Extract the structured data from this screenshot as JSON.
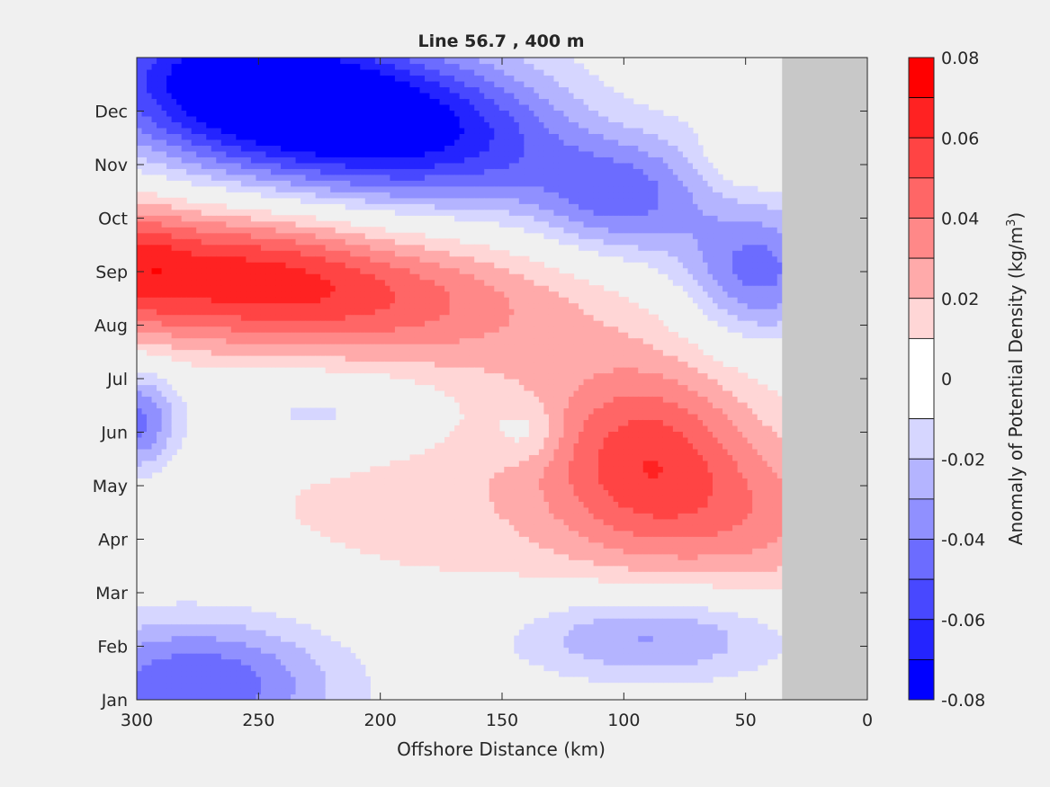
{
  "chart_data": {
    "type": "heatmap",
    "subtype": "filled-contour",
    "title": "Line 56.7 , 400 m",
    "xlabel": "Offshore Distance (km)",
    "ylabel": "",
    "xlim": [
      300,
      0
    ],
    "x_ticks": [
      300,
      250,
      200,
      150,
      100,
      50,
      0
    ],
    "y_ticks": [
      {
        "value": 0,
        "label": "Jan"
      },
      {
        "value": 1,
        "label": "Feb"
      },
      {
        "value": 2,
        "label": "Mar"
      },
      {
        "value": 3,
        "label": "Apr"
      },
      {
        "value": 4,
        "label": "May"
      },
      {
        "value": 5,
        "label": "Jun"
      },
      {
        "value": 6,
        "label": "Jul"
      },
      {
        "value": 7,
        "label": "Aug"
      },
      {
        "value": 8,
        "label": "Sep"
      },
      {
        "value": 9,
        "label": "Oct"
      },
      {
        "value": 10,
        "label": "Nov"
      },
      {
        "value": 11,
        "label": "Dec"
      }
    ],
    "ylim": [
      0,
      12
    ],
    "no_data_region": {
      "x_from": 35,
      "x_to": 0,
      "color": "#c8c8c8"
    },
    "zero_contour_color": "#000000",
    "colorbar": {
      "label_main": "Anomaly of Potential Density (kg/m",
      "label_sup": "3",
      "label_end": ")",
      "min": -0.08,
      "max": 0.08,
      "tick_labels": [
        "0.08",
        "0.06",
        "0.04",
        "0.02",
        "0",
        "-0.02",
        "-0.04",
        "-0.06",
        "-0.08"
      ],
      "tick_values": [
        0.08,
        0.06,
        0.04,
        0.02,
        0,
        -0.02,
        -0.04,
        -0.06,
        -0.08
      ],
      "bands": [
        {
          "from": 0.07,
          "to": 0.08,
          "color": "#ff0000"
        },
        {
          "from": 0.06,
          "to": 0.07,
          "color": "#ff2222"
        },
        {
          "from": 0.05,
          "to": 0.06,
          "color": "#ff4444"
        },
        {
          "from": 0.04,
          "to": 0.05,
          "color": "#ff6666"
        },
        {
          "from": 0.03,
          "to": 0.04,
          "color": "#ff8888"
        },
        {
          "from": 0.02,
          "to": 0.03,
          "color": "#ffaaaa"
        },
        {
          "from": 0.01,
          "to": 0.02,
          "color": "#ffd6d6"
        },
        {
          "from": -0.01,
          "to": 0.01,
          "color": "#ffffff"
        },
        {
          "from": -0.02,
          "to": -0.01,
          "color": "#d6d6ff"
        },
        {
          "from": -0.03,
          "to": -0.02,
          "color": "#b4b4ff"
        },
        {
          "from": -0.04,
          "to": -0.03,
          "color": "#9090ff"
        },
        {
          "from": -0.05,
          "to": -0.04,
          "color": "#6c6cff"
        },
        {
          "from": -0.06,
          "to": -0.05,
          "color": "#4848ff"
        },
        {
          "from": -0.07,
          "to": -0.06,
          "color": "#2424ff"
        },
        {
          "from": -0.08,
          "to": -0.07,
          "color": "#0000ff"
        }
      ]
    },
    "features": [
      {
        "x": 215,
        "y": 10.9,
        "sx": 60,
        "sy": 1.0,
        "amp": -0.06
      },
      {
        "x": 255,
        "y": 11.5,
        "sx": 45,
        "sy": 0.8,
        "amp": -0.045
      },
      {
        "x": 160,
        "y": 10.2,
        "sx": 60,
        "sy": 0.9,
        "amp": -0.03
      },
      {
        "x": 100,
        "y": 9.3,
        "sx": 25,
        "sy": 0.8,
        "amp": -0.035
      },
      {
        "x": 45,
        "y": 8.0,
        "sx": 22,
        "sy": 0.9,
        "amp": -0.045
      },
      {
        "x": 280,
        "y": 12.2,
        "sx": 40,
        "sy": 0.6,
        "amp": -0.02
      },
      {
        "x": 270,
        "y": 8.1,
        "sx": 50,
        "sy": 0.9,
        "amp": 0.048
      },
      {
        "x": 210,
        "y": 7.5,
        "sx": 60,
        "sy": 0.8,
        "amp": 0.03
      },
      {
        "x": 160,
        "y": 6.8,
        "sx": 60,
        "sy": 1.2,
        "amp": 0.012
      },
      {
        "x": 300,
        "y": 8.2,
        "sx": 15,
        "sy": 0.9,
        "amp": 0.02
      },
      {
        "x": 90,
        "y": 4.5,
        "sx": 30,
        "sy": 1.3,
        "amp": 0.045
      },
      {
        "x": 150,
        "y": 3.8,
        "sx": 90,
        "sy": 1.5,
        "amp": 0.016
      },
      {
        "x": 40,
        "y": 3.3,
        "sx": 30,
        "sy": 1.0,
        "amp": 0.02
      },
      {
        "x": 220,
        "y": 5.4,
        "sx": 35,
        "sy": 0.6,
        "amp": -0.022
      },
      {
        "x": 300,
        "y": 5.2,
        "sx": 12,
        "sy": 0.7,
        "amp": -0.045
      },
      {
        "x": 90,
        "y": 1.2,
        "sx": 40,
        "sy": 0.6,
        "amp": -0.035
      },
      {
        "x": 275,
        "y": 0.3,
        "sx": 40,
        "sy": 0.9,
        "amp": -0.05
      },
      {
        "x": 140,
        "y": 5.0,
        "sx": 10,
        "sy": 0.4,
        "amp": -0.015
      },
      {
        "x": 110,
        "y": 10.8,
        "sx": 30,
        "sy": 0.8,
        "amp": 0.012
      },
      {
        "x": 50,
        "y": 10.2,
        "sx": 12,
        "sy": 0.5,
        "amp": 0.018
      }
    ]
  }
}
